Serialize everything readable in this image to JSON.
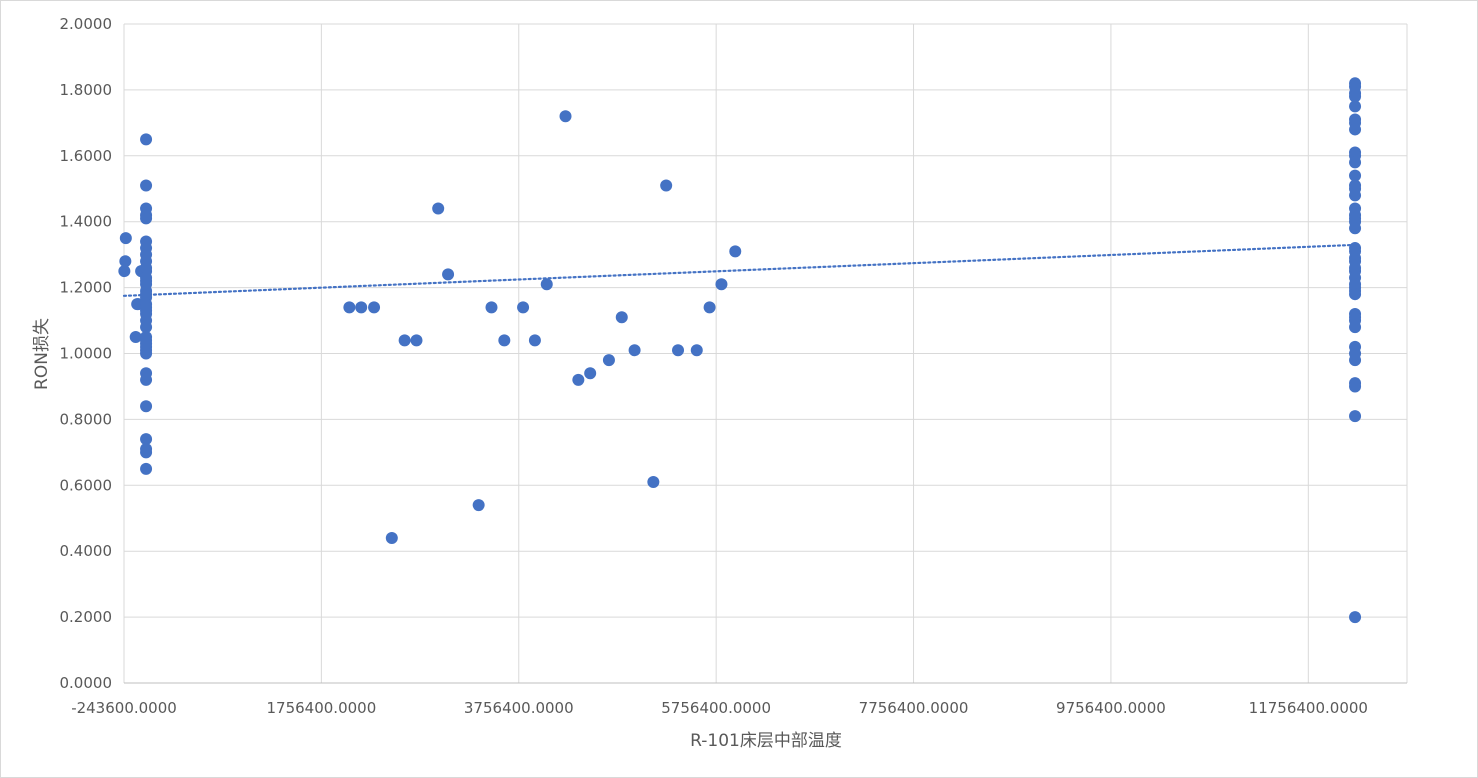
{
  "chart_data": {
    "type": "scatter",
    "title": "",
    "xlabel": "R-101床层中部温度",
    "ylabel": "RON损失",
    "xlim": [
      -243600,
      12756400
    ],
    "ylim": [
      0,
      2.0
    ],
    "x_ticks": [
      -243600,
      1756400,
      3756400,
      5756400,
      7756400,
      9756400,
      11756400
    ],
    "y_ticks": [
      0,
      0.2,
      0.4,
      0.6,
      0.8,
      1.0,
      1.2,
      1.4,
      1.6,
      1.8,
      2.0
    ],
    "x_tick_labels": [
      "-243600.0000",
      "1756400.0000",
      "3756400.0000",
      "5756400.0000",
      "7756400.0000",
      "9756400.0000",
      "11756400.0000"
    ],
    "y_tick_labels": [
      "0.0000",
      "0.2000",
      "0.4000",
      "0.6000",
      "0.8000",
      "1.0000",
      "1.2000",
      "1.4000",
      "1.6000",
      "1.8000",
      "2.0000"
    ],
    "grid": true,
    "legend": "none",
    "marker_color": "#4472c4",
    "trendline": {
      "type": "linear",
      "style": "dotted",
      "color": "#4472c4",
      "x": [
        -243600,
        12256400
      ],
      "y": [
        1.175,
        1.33
      ]
    },
    "series": [
      {
        "x": [
          -240000,
          -230000,
          -225000,
          -125000,
          -110000,
          -100000,
          -70000,
          -30000,
          -20000,
          -20000,
          -20000,
          -20000,
          -20000,
          -20000,
          -20000,
          -20000,
          -20000,
          -20000,
          -20000,
          -20000,
          -20000,
          -20000,
          -20000,
          -20000,
          -20000,
          -20000,
          -20000,
          -20000,
          -20000,
          -20000,
          -20000,
          -20000,
          -20000,
          -20000,
          -20000,
          -20000,
          -20000,
          -20000,
          -20000,
          -20000,
          -20000,
          -20000,
          -20000,
          -20000,
          2040000,
          2160000,
          2290000,
          2470000,
          2600000,
          2720000,
          2940000,
          3040000,
          3350000,
          3480000,
          3610000,
          3800000,
          3920000,
          4040000,
          4230000,
          4360000,
          4480000,
          4670000,
          4800000,
          4930000,
          5120000,
          5250000,
          5370000,
          5560000,
          5690000,
          5810000,
          5950000,
          12230000,
          12230000,
          12230000,
          12230000,
          12230000,
          12230000,
          12230000,
          12230000,
          12230000,
          12230000,
          12230000,
          12230000,
          12230000,
          12230000,
          12230000,
          12230000,
          12230000,
          12230000,
          12230000,
          12230000,
          12230000,
          12230000,
          12230000,
          12230000,
          12230000,
          12230000,
          12230000,
          12230000,
          12230000,
          12230000,
          12230000,
          12230000,
          12230000,
          12230000,
          12230000,
          12230000,
          12230000,
          12230000,
          12230000,
          12230000,
          12230000,
          12230000
        ],
        "y": [
          1.25,
          1.28,
          1.35,
          1.05,
          1.15,
          1.15,
          1.25,
          1.15,
          1.65,
          1.51,
          1.44,
          1.42,
          1.41,
          1.34,
          1.32,
          1.3,
          1.28,
          1.25,
          1.23,
          1.21,
          1.19,
          1.17,
          1.15,
          1.13,
          1.12,
          1.1,
          1.08,
          1.05,
          1.04,
          1.02,
          1.01,
          1.0,
          0.94,
          0.92,
          0.84,
          0.74,
          0.71,
          0.7,
          0.65,
          1.26,
          1.14,
          1.03,
          1.18,
          1.22,
          1.14,
          1.14,
          1.14,
          0.44,
          1.04,
          1.04,
          1.44,
          1.24,
          0.54,
          1.14,
          1.04,
          1.14,
          1.04,
          1.21,
          1.72,
          0.92,
          0.94,
          0.98,
          1.11,
          1.01,
          0.61,
          1.51,
          1.01,
          1.01,
          1.14,
          1.21,
          1.31,
          1.82,
          1.81,
          1.79,
          1.78,
          1.75,
          1.71,
          1.7,
          1.68,
          1.61,
          1.6,
          1.58,
          1.54,
          1.51,
          1.5,
          1.48,
          1.44,
          1.42,
          1.41,
          1.4,
          1.38,
          1.32,
          1.31,
          1.29,
          1.28,
          1.25,
          1.23,
          1.21,
          1.2,
          1.19,
          1.18,
          1.12,
          1.11,
          1.1,
          1.08,
          1.02,
          1.0,
          0.98,
          0.91,
          0.9,
          0.81,
          0.2,
          1.26
        ]
      }
    ]
  }
}
